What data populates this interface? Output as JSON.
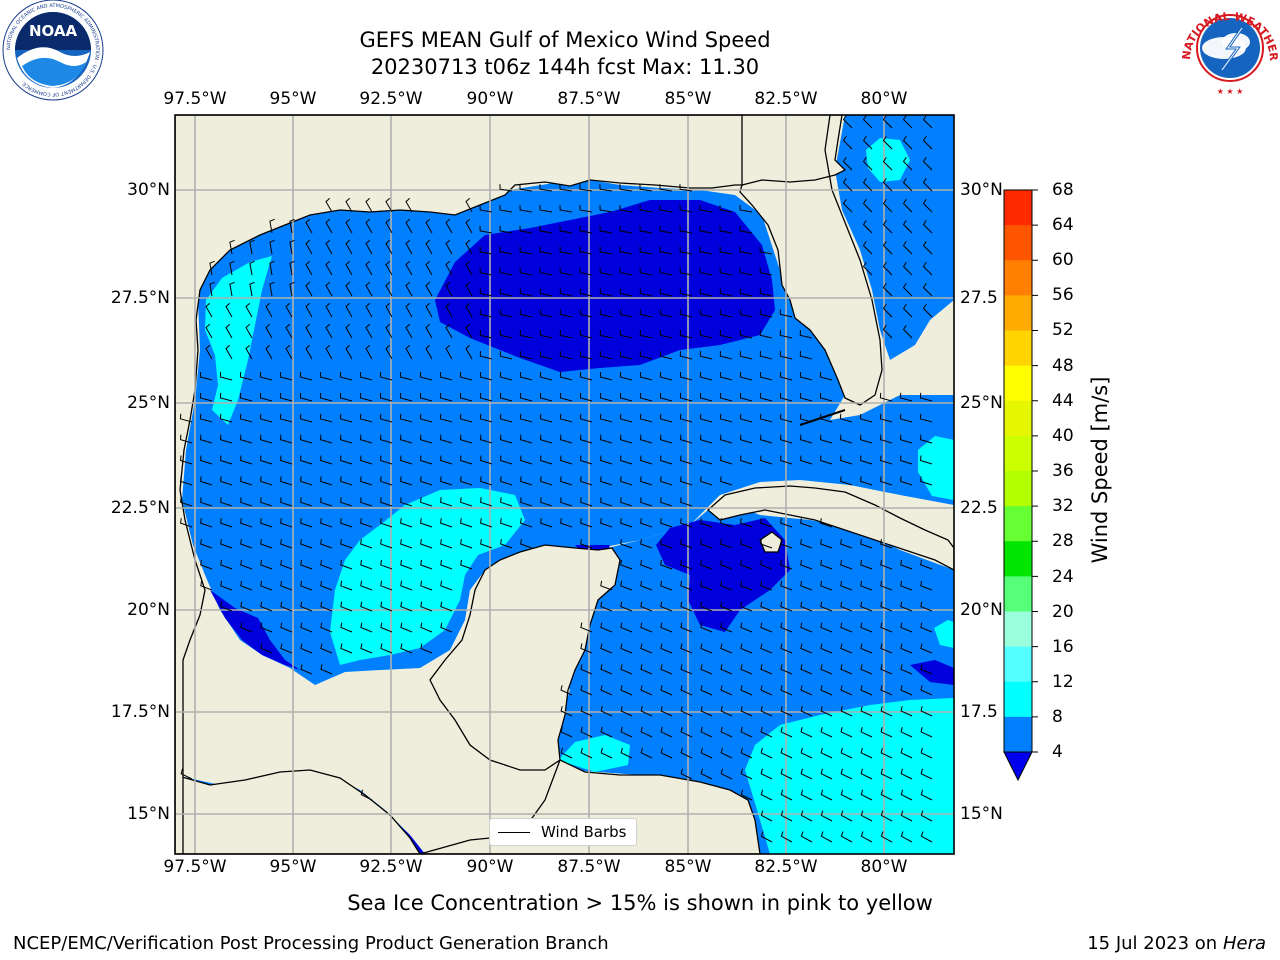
{
  "title_line1": "GEFS MEAN Gulf of Mexico Wind Speed",
  "title_line2": "20230713 t06z 144h fcst   Max: 11.30",
  "logos": {
    "left": "NOAA",
    "left_ring_text": "NATIONAL OCEANIC AND ATMOSPHERIC ADMINISTRATION · U.S. DEPARTMENT OF COMMERCE",
    "right_ring_text": "NATIONAL WEATHER SERVICE"
  },
  "lon_labels_top": [
    "97.5°W",
    "95°W",
    "92.5°W",
    "90°W",
    "87.5°W",
    "85°W",
    "82.5°W",
    "80°W"
  ],
  "lon_labels_bottom": [
    "97.5°W",
    "95°W",
    "92.5°W",
    "90°W",
    "87.5°W",
    "85°W",
    "82.5°W",
    "80°W"
  ],
  "lat_labels_left": [
    "30°N",
    "27.5°N",
    "25°N",
    "22.5°N",
    "20°N",
    "17.5°N",
    "15°N"
  ],
  "lat_labels_right": [
    "30°N",
    "27.5",
    "25°N",
    "22.5",
    "20°N",
    "17.5",
    "15°N"
  ],
  "colorbar": {
    "label": "Wind Speed [m/s]",
    "ticks": [
      "68",
      "64",
      "60",
      "56",
      "52",
      "48",
      "44",
      "40",
      "36",
      "32",
      "28",
      "24",
      "20",
      "16",
      "12",
      "8",
      "4"
    ],
    "colors": [
      "#ff0000",
      "#ff2a00",
      "#ff5500",
      "#ff8000",
      "#ffaa00",
      "#ffd400",
      "#ffff00",
      "#e6f500",
      "#ccff00",
      "#b3ff00",
      "#66ff33",
      "#00e600",
      "#55ff77",
      "#99ffdd",
      "#55ffff",
      "#00ffff",
      "#0080ff"
    ],
    "under_color": "#0000ee"
  },
  "legend_label": "Wind Barbs",
  "footer_note": "Sea Ice Concentration > 15% is shown in pink to yellow",
  "credit": "NCEP/EMC/Verification Post Processing Product Generation Branch",
  "date_text": "15 Jul 2023 on",
  "date_host": "Hera"
}
